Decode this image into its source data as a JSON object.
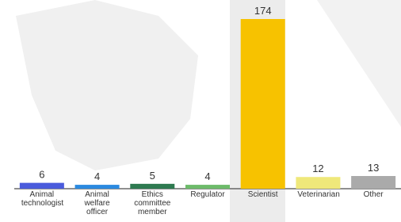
{
  "chart_data": {
    "type": "bar",
    "categories": [
      "Animal technologist",
      "Animal welfare officer",
      "Ethics committee member",
      "Regulator",
      "Scientist",
      "Veterinarian",
      "Other"
    ],
    "values": [
      6,
      4,
      5,
      4,
      174,
      12,
      13
    ],
    "colors": [
      "#4a5bdc",
      "#2b8ae0",
      "#2e7a50",
      "#6dbb6a",
      "#f7c200",
      "#efe87a",
      "#aaaaaa"
    ]
  }
}
